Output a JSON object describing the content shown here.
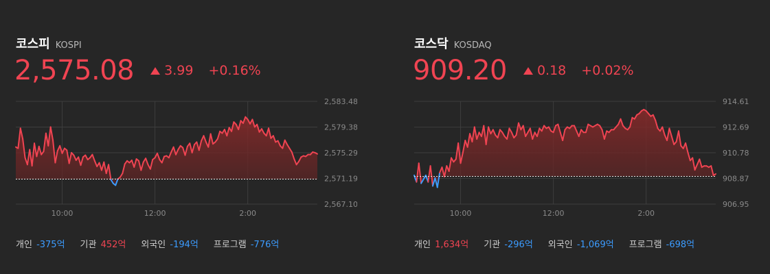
{
  "kospi": {
    "name": "코스피",
    "code": "KOSPI",
    "price": "2,575.08",
    "change": "3.99",
    "change_pct": "+0.16%",
    "direction": "up",
    "investors": [
      {
        "label": "개인",
        "value": "-375억",
        "sign": "neg"
      },
      {
        "label": "기관",
        "value": "452억",
        "sign": "pos"
      },
      {
        "label": "외국인",
        "value": "-194억",
        "sign": "neg"
      },
      {
        "label": "프로그램",
        "value": "-776억",
        "sign": "neg"
      }
    ]
  },
  "kosdaq": {
    "name": "코스닥",
    "code": "KOSDAQ",
    "price": "909.20",
    "change": "0.18",
    "change_pct": "+0.02%",
    "direction": "up",
    "investors": [
      {
        "label": "개인",
        "value": "1,634억",
        "sign": "pos"
      },
      {
        "label": "기관",
        "value": "-296억",
        "sign": "neg"
      },
      {
        "label": "외국인",
        "value": "-1,069억",
        "sign": "neg"
      },
      {
        "label": "프로그램",
        "value": "-698억",
        "sign": "neg"
      }
    ]
  },
  "colors": {
    "up": "#f04452",
    "down": "#3c9cff",
    "background": "#262626"
  },
  "chart_data": [
    {
      "type": "line",
      "name": "KOSPI",
      "baseline": 2571.09,
      "ylim": [
        2567.1,
        2583.48
      ],
      "y_ticks": [
        "2,583.48",
        "2,579.38",
        "2,575.29",
        "2,571.19",
        "2,567.10"
      ],
      "y_tick_values": [
        2583.48,
        2579.38,
        2575.29,
        2571.19,
        2567.1
      ],
      "x_ticks": [
        "10:00",
        "12:00",
        "2:00"
      ],
      "x_tick_values": [
        60,
        180,
        300
      ],
      "xlim": [
        0,
        390
      ],
      "x": [
        0,
        3,
        6,
        9,
        12,
        15,
        18,
        21,
        24,
        27,
        30,
        33,
        36,
        39,
        42,
        45,
        48,
        51,
        54,
        57,
        60,
        63,
        66,
        69,
        72,
        75,
        78,
        81,
        84,
        87,
        90,
        93,
        96,
        99,
        102,
        105,
        108,
        111,
        114,
        117,
        120,
        123,
        126,
        129,
        132,
        135,
        138,
        141,
        144,
        147,
        150,
        153,
        156,
        159,
        162,
        165,
        168,
        171,
        174,
        177,
        180,
        183,
        186,
        189,
        192,
        195,
        198,
        201,
        204,
        207,
        210,
        213,
        216,
        219,
        222,
        225,
        228,
        231,
        234,
        237,
        240,
        243,
        246,
        249,
        252,
        255,
        258,
        261,
        264,
        267,
        270,
        273,
        276,
        279,
        282,
        285,
        288,
        291,
        294,
        297,
        300,
        303,
        306,
        309,
        312,
        315,
        318,
        321,
        324,
        327,
        330,
        333,
        336,
        339,
        342,
        345,
        348,
        351,
        354,
        357,
        360,
        363,
        366,
        369,
        372,
        375,
        378,
        381,
        384,
        387,
        390
      ],
      "y": [
        2576.2,
        2576.0,
        2579.2,
        2577.5,
        2574.5,
        2573.4,
        2575.8,
        2573.2,
        2576.8,
        2574.7,
        2576.3,
        2575.0,
        2575.5,
        2578.4,
        2576.4,
        2579.4,
        2577.3,
        2573.7,
        2575.6,
        2576.4,
        2575.2,
        2576.0,
        2575.7,
        2573.6,
        2575.3,
        2574.9,
        2574.1,
        2574.6,
        2573.3,
        2574.6,
        2574.9,
        2574.2,
        2574.5,
        2575.0,
        2574.0,
        2573.1,
        2573.7,
        2572.5,
        2573.8,
        2572.0,
        2573.4,
        2571.0,
        2570.4,
        2570.1,
        2571.1,
        2571.4,
        2572.0,
        2573.5,
        2574.0,
        2573.7,
        2574.1,
        2573.0,
        2574.3,
        2574.0,
        2572.5,
        2573.8,
        2574.4,
        2573.4,
        2572.7,
        2574.2,
        2574.5,
        2575.2,
        2574.2,
        2573.7,
        2574.7,
        2574.8,
        2574.5,
        2575.4,
        2576.2,
        2575.0,
        2575.8,
        2576.4,
        2576.1,
        2574.9,
        2576.3,
        2576.8,
        2575.3,
        2576.6,
        2577.0,
        2575.7,
        2577.2,
        2578.0,
        2577.0,
        2576.2,
        2578.3,
        2576.7,
        2577.0,
        2577.5,
        2578.7,
        2578.4,
        2579.0,
        2578.0,
        2579.3,
        2578.7,
        2580.2,
        2579.8,
        2579.0,
        2580.4,
        2580.0,
        2581.0,
        2580.6,
        2579.9,
        2580.6,
        2579.4,
        2579.8,
        2578.6,
        2579.1,
        2578.4,
        2578.0,
        2579.2,
        2577.6,
        2578.0,
        2577.0,
        2577.2,
        2576.4,
        2576.0,
        2577.3,
        2576.6,
        2576.0,
        2575.4,
        2574.3,
        2573.4,
        2573.9,
        2574.6,
        2574.8,
        2574.7,
        2575.0,
        2575.0,
        2575.4,
        2575.3,
        2575.1
      ]
    },
    {
      "type": "line",
      "name": "KOSDAQ",
      "baseline": 909.02,
      "ylim": [
        906.95,
        914.61
      ],
      "y_ticks": [
        "914.61",
        "912.69",
        "910.78",
        "908.87",
        "906.95"
      ],
      "y_tick_values": [
        914.61,
        912.69,
        910.78,
        908.87,
        906.95
      ],
      "x_ticks": [
        "10:00",
        "12:00",
        "2:00"
      ],
      "x_tick_values": [
        60,
        180,
        300
      ],
      "xlim": [
        0,
        390
      ],
      "x": [
        0,
        3,
        6,
        9,
        12,
        15,
        18,
        21,
        24,
        27,
        30,
        33,
        36,
        39,
        42,
        45,
        48,
        51,
        54,
        57,
        60,
        63,
        66,
        69,
        72,
        75,
        78,
        81,
        84,
        87,
        90,
        93,
        96,
        99,
        102,
        105,
        108,
        111,
        114,
        117,
        120,
        123,
        126,
        129,
        132,
        135,
        138,
        141,
        144,
        147,
        150,
        153,
        156,
        159,
        162,
        165,
        168,
        171,
        174,
        177,
        180,
        183,
        186,
        189,
        192,
        195,
        198,
        201,
        204,
        207,
        210,
        213,
        216,
        219,
        222,
        225,
        228,
        231,
        234,
        237,
        240,
        243,
        246,
        249,
        252,
        255,
        258,
        261,
        264,
        267,
        270,
        273,
        276,
        279,
        282,
        285,
        288,
        291,
        294,
        297,
        300,
        303,
        306,
        309,
        312,
        315,
        318,
        321,
        324,
        327,
        330,
        333,
        336,
        339,
        342,
        345,
        348,
        351,
        354,
        357,
        360,
        363,
        366,
        369,
        372,
        375,
        378,
        381,
        384,
        387,
        390
      ],
      "y": [
        909.1,
        908.6,
        910.0,
        908.5,
        908.8,
        909.1,
        908.6,
        909.8,
        908.3,
        908.9,
        908.2,
        909.3,
        909.7,
        909.0,
        909.8,
        909.4,
        910.4,
        910.1,
        910.3,
        911.5,
        910.0,
        910.8,
        911.7,
        911.2,
        912.2,
        911.6,
        912.7,
        911.8,
        912.3,
        912.0,
        912.8,
        911.4,
        912.7,
        912.2,
        912.5,
        912.1,
        911.9,
        912.5,
        912.3,
        912.0,
        911.8,
        912.6,
        912.3,
        911.9,
        912.1,
        913.0,
        912.5,
        912.8,
        912.0,
        912.3,
        912.6,
        911.8,
        912.3,
        912.0,
        912.6,
        912.4,
        912.8,
        912.6,
        912.7,
        912.4,
        912.3,
        912.8,
        912.9,
        912.3,
        911.7,
        912.5,
        912.7,
        912.6,
        912.8,
        912.8,
        912.4,
        912.0,
        912.5,
        912.3,
        912.3,
        912.9,
        912.8,
        912.7,
        912.8,
        912.9,
        912.8,
        912.5,
        911.8,
        912.4,
        912.3,
        912.5,
        912.5,
        912.7,
        912.9,
        913.3,
        912.8,
        912.6,
        912.5,
        912.7,
        913.4,
        913.3,
        913.6,
        913.7,
        913.9,
        914.0,
        913.9,
        913.7,
        913.5,
        913.6,
        913.2,
        912.6,
        912.4,
        912.7,
        912.1,
        911.7,
        912.6,
        912.0,
        911.4,
        911.6,
        912.4,
        911.3,
        911.1,
        911.5,
        910.8,
        910.2,
        910.4,
        909.5,
        909.9,
        910.3,
        909.7,
        909.8,
        909.8,
        909.7,
        909.8,
        909.1,
        909.2
      ]
    }
  ]
}
